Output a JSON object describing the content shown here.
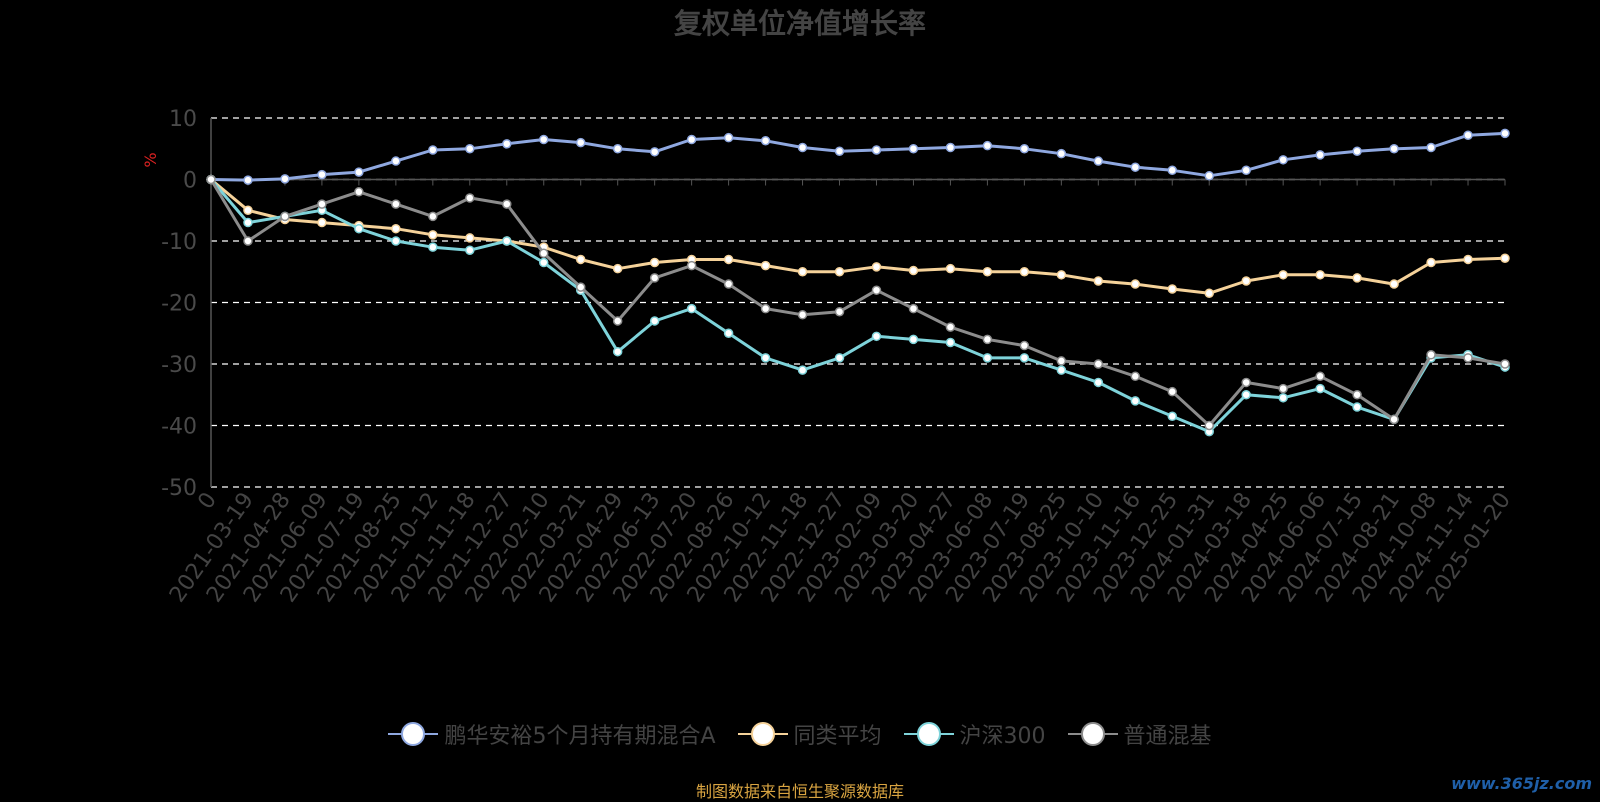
{
  "title": "复权单位净值增长率",
  "source_note": "制图数据来自恒生聚源数据库",
  "watermark": "www.365jz.com",
  "chart_data": {
    "type": "line",
    "title": "复权单位净值增长率",
    "ylabel": "%",
    "xlabel": "",
    "ylim": [
      -50,
      10
    ],
    "yticks": [
      10,
      0,
      -10,
      -20,
      -30,
      -40,
      -50
    ],
    "grid": true,
    "legend_position": "bottom",
    "x_tick_labels": [
      "0",
      "2021-03-19",
      "2021-04-28",
      "2021-06-09",
      "2021-07-19",
      "2021-08-25",
      "2021-10-12",
      "2021-11-18",
      "2021-12-27",
      "2022-02-10",
      "2022-03-21",
      "2022-04-29",
      "2022-06-13",
      "2022-07-20",
      "2022-08-26",
      "2022-10-12",
      "2022-11-18",
      "2022-12-27",
      "2023-02-09",
      "2023-03-20",
      "2023-04-27",
      "2023-06-08",
      "2023-07-19",
      "2023-08-25",
      "2023-10-10",
      "2023-11-16",
      "2023-12-25",
      "2024-01-31",
      "2024-03-18",
      "2024-04-25",
      "2024-06-06",
      "2024-07-15",
      "2024-08-21",
      "2024-10-08",
      "2024-11-14",
      "2025-01-20"
    ],
    "series": [
      {
        "name": "鹏华安裕5个月持有期混合A",
        "color": "#8fa8e0",
        "values": [
          0,
          -0.1,
          0.1,
          0.8,
          1.2,
          3.0,
          4.8,
          5.0,
          5.8,
          6.5,
          6.0,
          5.0,
          4.5,
          6.5,
          6.8,
          6.3,
          5.2,
          4.6,
          4.8,
          5.0,
          5.2,
          5.5,
          5.0,
          4.2,
          3.0,
          2.0,
          1.5,
          0.6,
          1.5,
          3.2,
          4.0,
          4.6,
          5.0,
          5.2,
          7.2,
          7.5
        ]
      },
      {
        "name": "同类平均",
        "color": "#f5d29a",
        "values": [
          0,
          -5.0,
          -6.5,
          -7.0,
          -7.5,
          -8.0,
          -9.0,
          -9.5,
          -10.0,
          -11.0,
          -13.0,
          -14.5,
          -13.5,
          -13.0,
          -13.0,
          -14.0,
          -15.0,
          -15.0,
          -14.2,
          -14.8,
          -14.5,
          -15.0,
          -15.0,
          -15.5,
          -16.5,
          -17.0,
          -17.8,
          -18.5,
          -16.5,
          -15.5,
          -15.5,
          -16.0,
          -17.0,
          -13.5,
          -13.0,
          -12.8
        ]
      },
      {
        "name": "沪深300",
        "color": "#7ed3da",
        "values": [
          0,
          -7.0,
          -6.0,
          -5.0,
          -8.0,
          -10.0,
          -11.0,
          -11.5,
          -10.0,
          -13.5,
          -18.0,
          -28.0,
          -23.0,
          -21.0,
          -25.0,
          -29.0,
          -31.0,
          -29.0,
          -25.5,
          -26.0,
          -26.5,
          -29.0,
          -29.0,
          -31.0,
          -33.0,
          -36.0,
          -38.5,
          -41.0,
          -35.0,
          -35.5,
          -34.0,
          -37.0,
          -39.0,
          -29.0,
          -28.5,
          -30.5
        ]
      },
      {
        "name": "普通混基",
        "color": "#8c8c8c",
        "values": [
          0,
          -10.0,
          -6.0,
          -4.0,
          -2.0,
          -4.0,
          -6.0,
          -3.0,
          -4.0,
          -12.0,
          -17.5,
          -23.0,
          -16.0,
          -14.0,
          -17.0,
          -21.0,
          -22.0,
          -21.5,
          -18.0,
          -21.0,
          -24.0,
          -26.0,
          -27.0,
          -29.5,
          -30.0,
          -32.0,
          -34.5,
          -40.0,
          -33.0,
          -34.0,
          -32.0,
          -35.0,
          -39.0,
          -28.5,
          -29.0,
          -30.0
        ]
      }
    ]
  }
}
